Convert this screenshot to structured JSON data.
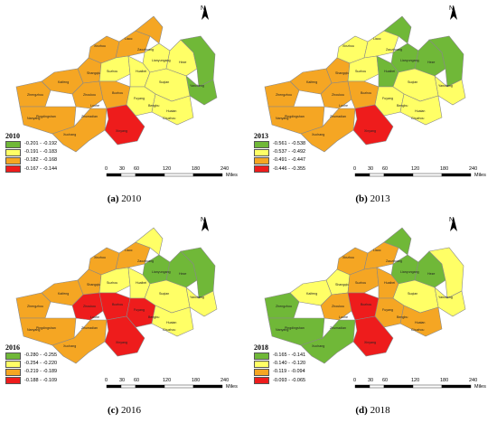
{
  "panels": [
    {
      "year": "2010",
      "caption_letter": "(a)",
      "caption_year": "2010",
      "legend": [
        {
          "label": "-0.201 - -0.192",
          "color": "#70b838"
        },
        {
          "label": "-0.191 - -0.183",
          "color": "#ffff66"
        },
        {
          "label": "-0.182 - -0.168",
          "color": "#f5a623"
        },
        {
          "label": "-0.167 - -0.144",
          "color": "#ee1c1c"
        }
      ],
      "regions": [
        "orange",
        "orange",
        "orange",
        "yellow",
        "yellow",
        "green",
        "green",
        "orange",
        "yellow",
        "yellow",
        "yellow",
        "orange",
        "orange",
        "orange",
        "orange",
        "yellow",
        "yellow",
        "red",
        "orange",
        "orange"
      ]
    },
    {
      "year": "2013",
      "caption_letter": "(b)",
      "caption_year": "2013",
      "legend": [
        {
          "label": "-0.561 - -0.538",
          "color": "#70b838"
        },
        {
          "label": "-0.537 - -0.492",
          "color": "#ffff66"
        },
        {
          "label": "-0.491 - -0.447",
          "color": "#f5a623"
        },
        {
          "label": "-0.446 - -0.355",
          "color": "#ee1c1c"
        }
      ],
      "regions": [
        "yellow",
        "yellow",
        "green",
        "green",
        "green",
        "green",
        "yellow",
        "orange",
        "yellow",
        "green",
        "yellow",
        "orange",
        "orange",
        "orange",
        "orange",
        "yellow",
        "yellow",
        "red",
        "orange",
        "orange"
      ]
    },
    {
      "year": "2016",
      "caption_letter": "(c)",
      "caption_year": "2016",
      "legend": [
        {
          "label": "-0.280 - -0.255",
          "color": "#70b838"
        },
        {
          "label": "-0.254 - -0.220",
          "color": "#ffff66"
        },
        {
          "label": "-0.219 - -0.189",
          "color": "#f5a623"
        },
        {
          "label": "-0.188 - -0.109",
          "color": "#ee1c1c"
        }
      ],
      "regions": [
        "orange",
        "orange",
        "yellow",
        "green",
        "green",
        "green",
        "yellow",
        "orange",
        "yellow",
        "yellow",
        "yellow",
        "orange",
        "orange",
        "red",
        "red",
        "red",
        "yellow",
        "red",
        "orange",
        "orange"
      ]
    },
    {
      "year": "2018",
      "caption_letter": "(d)",
      "caption_year": "2018",
      "legend": [
        {
          "label": "-0.165 - -0.141",
          "color": "#70b838"
        },
        {
          "label": "-0.140 - -0.120",
          "color": "#ffff66"
        },
        {
          "label": "-0.119 - -0.094",
          "color": "#f5a623"
        },
        {
          "label": "-0.093 - -0.065",
          "color": "#ee1c1c"
        }
      ],
      "regions": [
        "orange",
        "orange",
        "green",
        "green",
        "green",
        "yellow",
        "yellow",
        "yellow",
        "orange",
        "orange",
        "yellow",
        "yellow",
        "green",
        "orange",
        "red",
        "orange",
        "orange",
        "red",
        "green",
        "green"
      ]
    }
  ],
  "scale_labels": [
    "0",
    "30",
    "60",
    "120",
    "180",
    "240"
  ],
  "scale_unit": "Miles",
  "north_label": "N",
  "city_labels": [
    "Xinzhou",
    "Liaoc",
    "Zaozhuang",
    "Lianyungang",
    "Heze",
    "Shangqiu",
    "Suzhou",
    "Huaibei",
    "Suqian",
    "Kaifeng",
    "Zhengzhou",
    "Zhoukou",
    "Bozhou",
    "Fuyang",
    "Huaian",
    "Yancheng",
    "Pingdingshan",
    "Zhumadian",
    "Luohe",
    "Nanyang",
    "Xinyang",
    "Bengbu",
    "Chuzhou",
    "Xuchang"
  ]
}
